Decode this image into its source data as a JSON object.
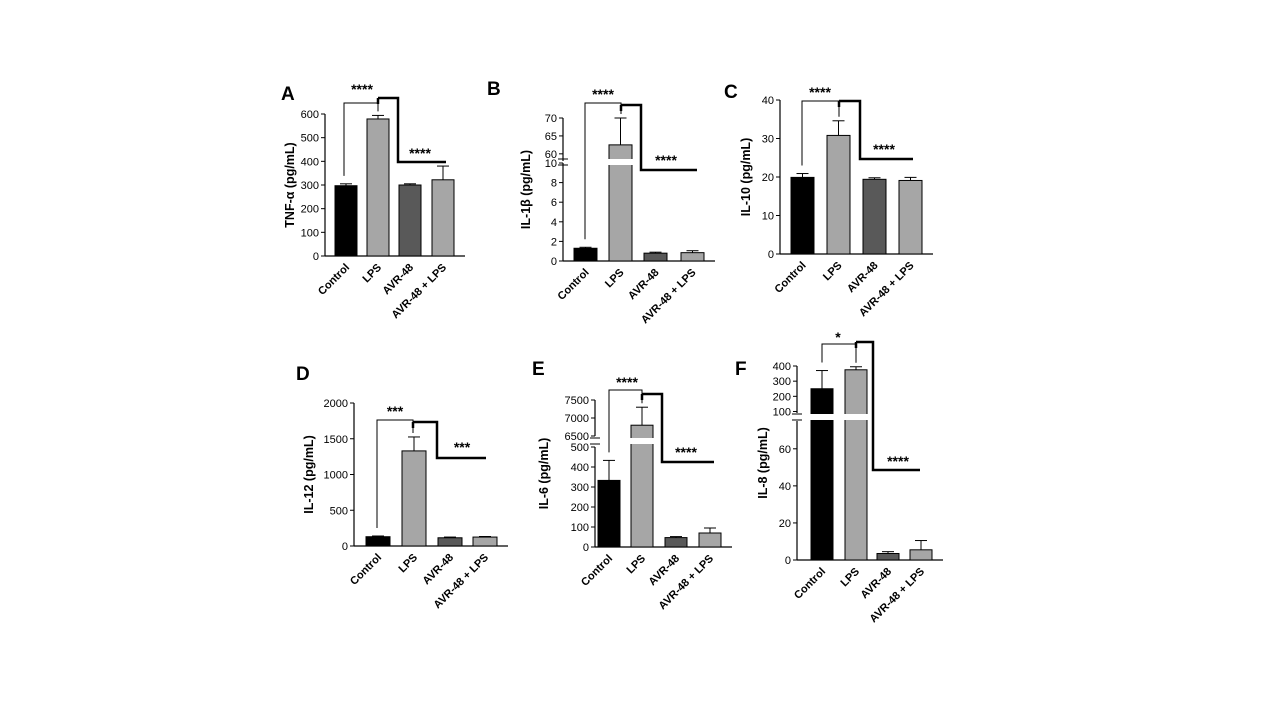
{
  "colors": {
    "Control": "#000000",
    "LPS": "#a6a6a6",
    "AVR-48": "#595959",
    "AVR-48 + LPS": "#a6a6a6"
  },
  "chart_data": [
    {
      "type": "bar",
      "panel": "A",
      "ylabel": "TNF-α (pg/mL)",
      "categories": [
        "Control",
        "LPS",
        "AVR-48",
        "AVR-48 + LPS"
      ],
      "values": [
        297,
        579,
        300,
        322
      ],
      "errors": [
        8,
        15,
        5,
        58
      ],
      "ylim": [
        0,
        600
      ],
      "yticks": [
        "0",
        "100",
        "200",
        "300",
        "400",
        "500",
        "600"
      ],
      "significance": [
        "****",
        "****"
      ]
    },
    {
      "type": "bar",
      "panel": "B",
      "ylabel": "IL-1β (pg/mL)",
      "categories": [
        "Control",
        "LPS",
        "AVR-48",
        "AVR-48 + LPS"
      ],
      "values": [
        1.3,
        62.5,
        0.8,
        0.85
      ],
      "errors": [
        0.1,
        7.5,
        0.1,
        0.2
      ],
      "axis_break": [
        10,
        58
      ],
      "ylim": [
        0,
        70
      ],
      "yticks": [
        "0",
        "2",
        "4",
        "6",
        "8",
        "10",
        "60",
        "65",
        "70"
      ],
      "significance": [
        "****",
        "****"
      ]
    },
    {
      "type": "bar",
      "panel": "C",
      "ylabel": "IL-10 (pg/mL)",
      "categories": [
        "Control",
        "LPS",
        "AVR-48",
        "AVR-48 + LPS"
      ],
      "values": [
        19.9,
        30.8,
        19.4,
        19.1
      ],
      "errors": [
        1.0,
        3.8,
        0.4,
        0.8
      ],
      "ylim": [
        0,
        40
      ],
      "yticks": [
        "0",
        "10",
        "20",
        "30",
        "40"
      ],
      "significance": [
        "****",
        "****"
      ]
    },
    {
      "type": "bar",
      "panel": "D",
      "ylabel": "IL-12 (pg/mL)",
      "categories": [
        "Control",
        "LPS",
        "AVR-48",
        "AVR-48 + LPS"
      ],
      "values": [
        130,
        1330,
        115,
        125
      ],
      "errors": [
        10,
        195,
        10,
        8
      ],
      "ylim": [
        0,
        2000
      ],
      "yticks": [
        "0",
        "500",
        "1000",
        "1500",
        "2000"
      ],
      "significance": [
        "***",
        "***"
      ]
    },
    {
      "type": "bar",
      "panel": "E",
      "ylabel": "IL-6 (pg/mL)",
      "categories": [
        "Control",
        "LPS",
        "AVR-48",
        "AVR-48 + LPS"
      ],
      "values": [
        333,
        6800,
        47,
        70
      ],
      "errors": [
        100,
        500,
        5,
        25
      ],
      "axis_break": [
        500,
        6500
      ],
      "ylim": [
        0,
        7500
      ],
      "yticks": [
        "0",
        "100",
        "200",
        "300",
        "400",
        "500",
        "6500",
        "7000",
        "7500"
      ],
      "significance": [
        "****",
        "****"
      ]
    },
    {
      "type": "bar",
      "panel": "F",
      "ylabel": "IL-8 (pg/mL)",
      "categories": [
        "Control",
        "LPS",
        "AVR-48",
        "AVR-48 + LPS"
      ],
      "values": [
        250,
        375,
        3.5,
        5.5
      ],
      "errors": [
        120,
        20,
        1,
        5
      ],
      "axis_break": [
        75,
        90
      ],
      "ylim": [
        0,
        400
      ],
      "yticks": [
        "0",
        "20",
        "40",
        "60",
        "100",
        "200",
        "300",
        "400"
      ],
      "significance": [
        "*",
        "****"
      ]
    }
  ]
}
